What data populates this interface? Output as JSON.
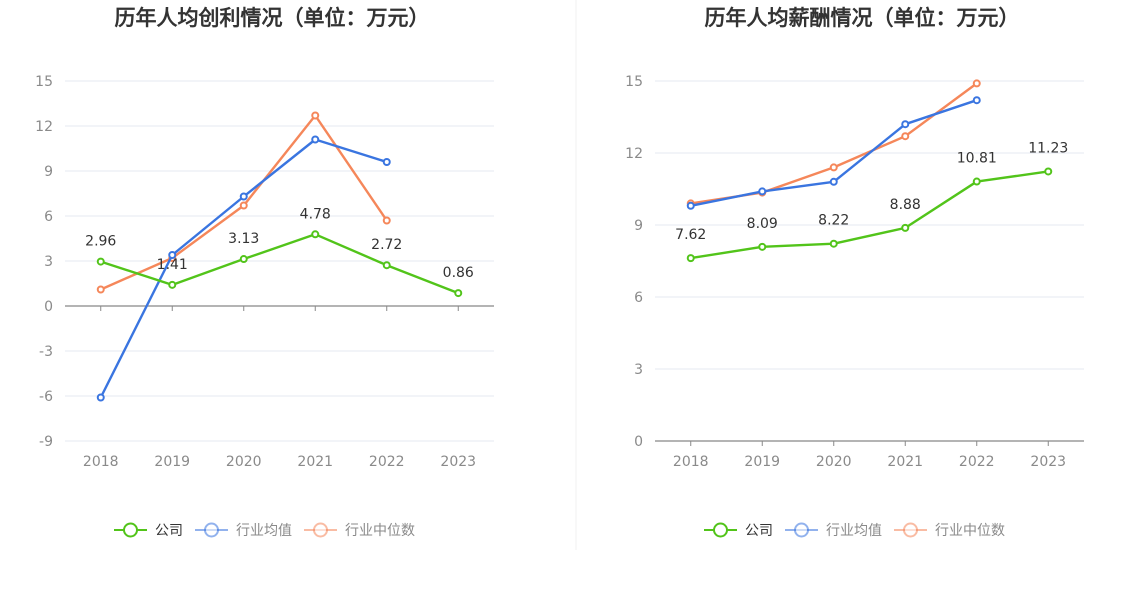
{
  "colors": {
    "company": "#52c41a",
    "industry_avg": "#3a75e0",
    "industry_median": "#f5875a",
    "grid": "#e6e9f2",
    "axis": "#888888",
    "legend_inactive_text": "#8a8a8a",
    "legend_active_text": "#333333"
  },
  "legend": [
    {
      "key": "company",
      "label": "公司"
    },
    {
      "key": "industry_avg",
      "label": "行业均值"
    },
    {
      "key": "industry_median",
      "label": "行业中位数"
    }
  ],
  "chart_data": [
    {
      "type": "line",
      "title": "历年人均创利情况（单位：万元）",
      "categories": [
        "2018",
        "2019",
        "2020",
        "2021",
        "2022",
        "2023"
      ],
      "ylim": [
        -9,
        15
      ],
      "yticks": [
        15,
        12,
        9,
        6,
        3,
        0,
        -3,
        -6,
        -9
      ],
      "series": [
        {
          "key": "company",
          "name": "公司",
          "values": [
            2.96,
            1.41,
            3.13,
            4.78,
            2.72,
            0.86
          ],
          "labels": [
            "2.96",
            "1.41",
            "3.13",
            "4.78",
            "2.72",
            "0.86"
          ]
        },
        {
          "key": "industry_avg",
          "name": "行业均值",
          "values": [
            -6.1,
            3.4,
            7.3,
            11.1,
            9.6,
            null
          ]
        },
        {
          "key": "industry_median",
          "name": "行业中位数",
          "values": [
            1.1,
            3.2,
            6.7,
            12.7,
            5.7,
            null
          ]
        }
      ]
    },
    {
      "type": "line",
      "title": "历年人均薪酬情况（单位：万元）",
      "categories": [
        "2018",
        "2019",
        "2020",
        "2021",
        "2022",
        "2023"
      ],
      "ylim": [
        0,
        15
      ],
      "yticks": [
        15,
        12,
        9,
        6,
        3,
        0
      ],
      "series": [
        {
          "key": "company",
          "name": "公司",
          "values": [
            7.62,
            8.09,
            8.22,
            8.88,
            10.81,
            11.23
          ],
          "labels": [
            "7.62",
            "8.09",
            "8.22",
            "8.88",
            "10.81",
            "11.23"
          ]
        },
        {
          "key": "industry_avg",
          "name": "行业均值",
          "values": [
            9.8,
            10.4,
            10.8,
            13.2,
            14.2,
            null
          ]
        },
        {
          "key": "industry_median",
          "name": "行业中位数",
          "values": [
            9.9,
            10.35,
            11.4,
            12.7,
            14.9,
            null
          ]
        }
      ]
    }
  ]
}
